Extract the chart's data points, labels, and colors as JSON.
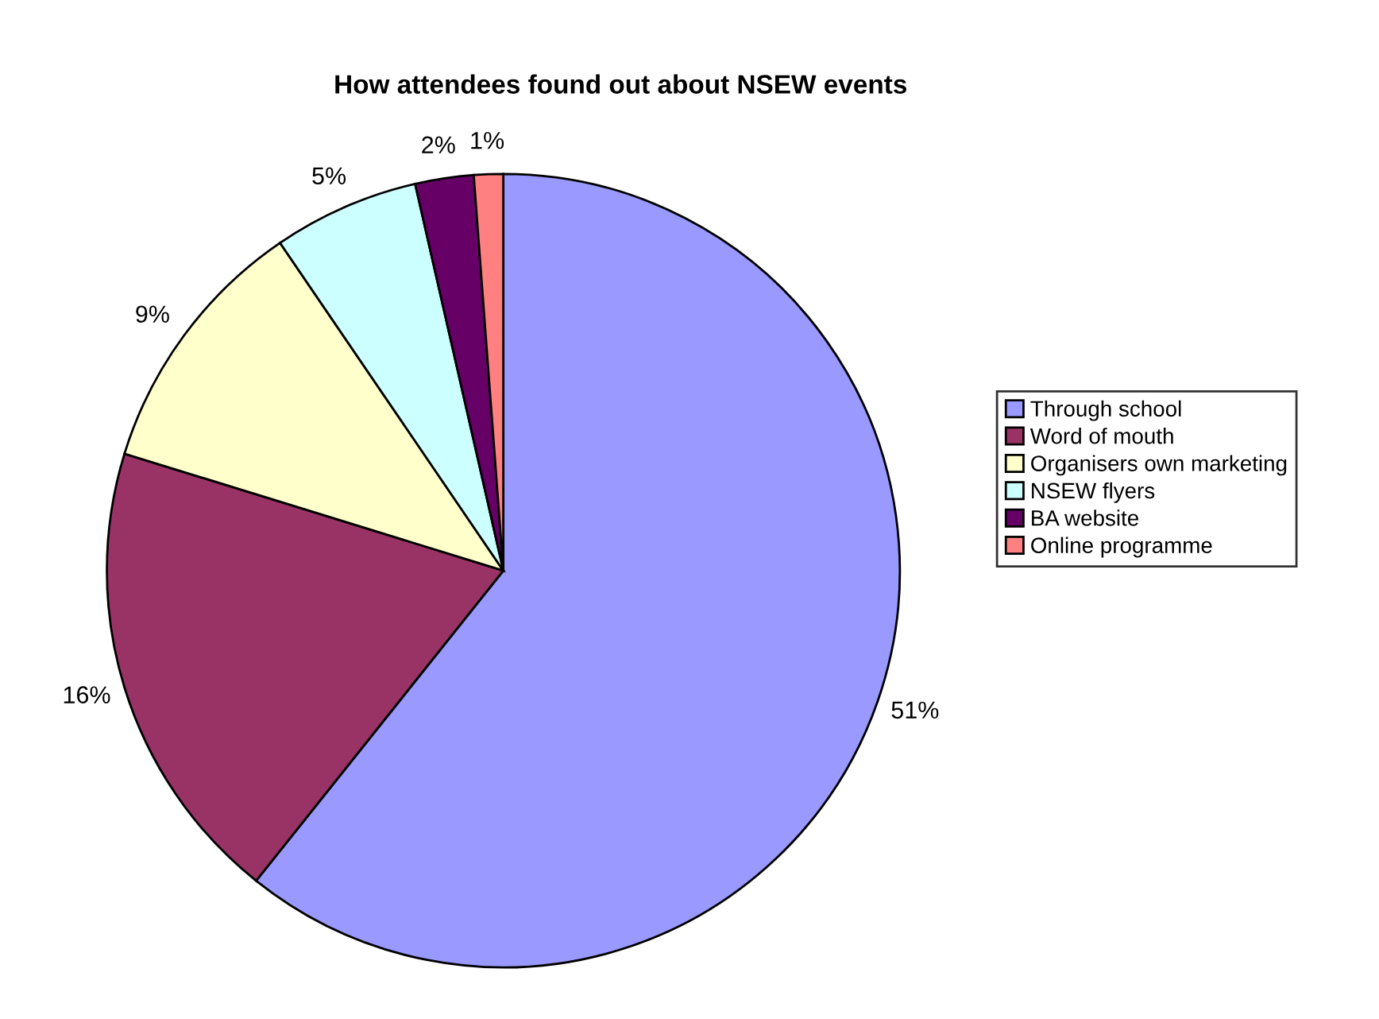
{
  "chart_data": {
    "type": "pie",
    "title": "How attendees found out about NSEW events",
    "categories": [
      "Through school",
      "Word of mouth",
      "Organisers own marketing",
      "NSEW flyers",
      "BA website",
      "Online programme"
    ],
    "values": [
      51,
      16,
      9,
      5,
      2,
      1
    ],
    "value_labels": [
      "51%",
      "16%",
      "9%",
      "5%",
      "2%",
      "1%"
    ],
    "colors": [
      "#9999ff",
      "#993366",
      "#ffffcc",
      "#ccffff",
      "#660066",
      "#ff8080"
    ],
    "legend": "right"
  }
}
